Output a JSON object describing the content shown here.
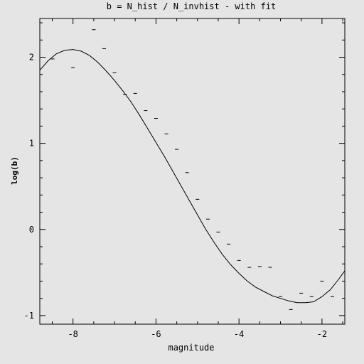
{
  "chart_data": {
    "type": "scatter",
    "title": "b = N_hist / N_invhist - with fit",
    "xlabel": "magnitude",
    "ylabel": "log(b)",
    "xlim": [
      -8.8,
      -1.45
    ],
    "ylim": [
      -1.1,
      2.45
    ],
    "x_ticks": [
      -8,
      -6,
      -4,
      -2
    ],
    "x_tick_labels": [
      "-8",
      "-6",
      "-4",
      "-2"
    ],
    "y_ticks": [
      -1,
      0,
      1,
      2
    ],
    "y_tick_labels": [
      "-1",
      "0",
      "1",
      "2"
    ],
    "x_minor_step": 0.5,
    "y_minor_step": 0.2,
    "grid": false,
    "series": [
      {
        "style": "points",
        "x": [
          -8.49,
          -8.0,
          -7.5,
          -7.25,
          -7.0,
          -6.75,
          -6.5,
          -6.25,
          -6.0,
          -5.75,
          -5.5,
          -5.25,
          -5.0,
          -4.75,
          -4.5,
          -4.25,
          -4.0,
          -3.75,
          -3.5,
          -3.25,
          -3.0,
          -2.75,
          -2.5,
          -2.25,
          -2.0,
          -1.75
        ],
        "y": [
          1.98,
          1.88,
          2.32,
          2.1,
          1.82,
          1.57,
          1.58,
          1.38,
          1.29,
          1.11,
          0.93,
          0.66,
          0.35,
          0.12,
          -0.03,
          -0.17,
          -0.36,
          -0.44,
          -0.43,
          -0.44,
          -0.78,
          -0.93,
          -0.74,
          -0.78,
          -0.6,
          -0.78
        ]
      },
      {
        "style": "line",
        "x": [
          -8.8,
          -8.6,
          -8.4,
          -8.2,
          -8.0,
          -7.8,
          -7.6,
          -7.4,
          -7.2,
          -7.0,
          -6.8,
          -6.6,
          -6.4,
          -6.2,
          -6.0,
          -5.8,
          -5.6,
          -5.4,
          -5.2,
          -5.0,
          -4.8,
          -4.6,
          -4.4,
          -4.2,
          -4.0,
          -3.8,
          -3.6,
          -3.4,
          -3.2,
          -3.0,
          -2.8,
          -2.6,
          -2.4,
          -2.2,
          -2.0,
          -1.8,
          -1.6,
          -1.45
        ],
        "y": [
          1.85,
          1.96,
          2.04,
          2.08,
          2.09,
          2.07,
          2.02,
          1.94,
          1.84,
          1.73,
          1.61,
          1.48,
          1.33,
          1.17,
          1.01,
          0.85,
          0.68,
          0.51,
          0.34,
          0.17,
          0.0,
          -0.15,
          -0.29,
          -0.41,
          -0.51,
          -0.6,
          -0.67,
          -0.72,
          -0.77,
          -0.8,
          -0.83,
          -0.85,
          -0.85,
          -0.84,
          -0.78,
          -0.7,
          -0.58,
          -0.48
        ]
      }
    ]
  }
}
